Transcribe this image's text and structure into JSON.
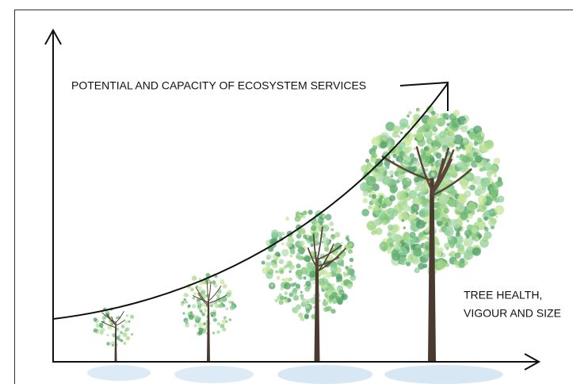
{
  "diagram": {
    "y_axis_label": "POTENTIAL AND CAPACITY OF ECOSYSTEM SERVICES",
    "x_axis_label": [
      "TREE HEALTH,",
      "VIGOUR AND SIZE"
    ]
  }
}
